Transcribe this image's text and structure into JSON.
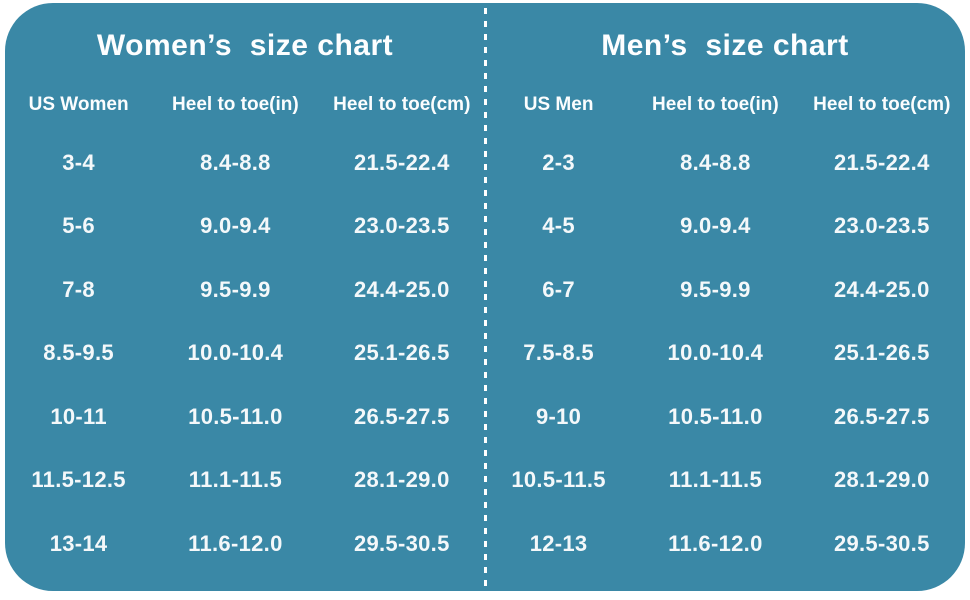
{
  "style": {
    "page_background": "#ffffff",
    "panel_color": "#3a88a6",
    "text_color": "#ffffff",
    "divider": "white dotted vertical line"
  },
  "chart_data": [
    {
      "type": "table",
      "title": "Women’s  size chart",
      "columns": [
        "US Women",
        "Heel to toe(in)",
        "Heel to toe(cm)"
      ],
      "rows": [
        [
          "3-4",
          "8.4-8.8",
          "21.5-22.4"
        ],
        [
          "5-6",
          "9.0-9.4",
          "23.0-23.5"
        ],
        [
          "7-8",
          "9.5-9.9",
          "24.4-25.0"
        ],
        [
          "8.5-9.5",
          "10.0-10.4",
          "25.1-26.5"
        ],
        [
          "10-11",
          "10.5-11.0",
          "26.5-27.5"
        ],
        [
          "11.5-12.5",
          "11.1-11.5",
          "28.1-29.0"
        ],
        [
          "13-14",
          "11.6-12.0",
          "29.5-30.5"
        ]
      ]
    },
    {
      "type": "table",
      "title": "Men’s  size chart",
      "columns": [
        "US Men",
        "Heel to toe(in)",
        "Heel to toe(cm)"
      ],
      "rows": [
        [
          "2-3",
          "8.4-8.8",
          "21.5-22.4"
        ],
        [
          "4-5",
          "9.0-9.4",
          "23.0-23.5"
        ],
        [
          "6-7",
          "9.5-9.9",
          "24.4-25.0"
        ],
        [
          "7.5-8.5",
          "10.0-10.4",
          "25.1-26.5"
        ],
        [
          "9-10",
          "10.5-11.0",
          "26.5-27.5"
        ],
        [
          "10.5-11.5",
          "11.1-11.5",
          "28.1-29.0"
        ],
        [
          "12-13",
          "11.6-12.0",
          "29.5-30.5"
        ]
      ]
    }
  ]
}
